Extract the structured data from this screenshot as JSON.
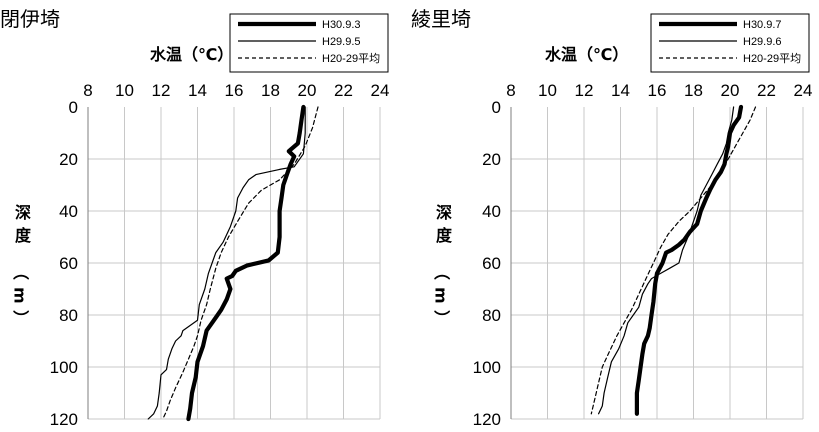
{
  "chart_data": [
    {
      "type": "line",
      "title": "閉伊埼",
      "xlabel": "水温（℃）",
      "ylabel": "深度（m）",
      "xlim": [
        8,
        24
      ],
      "ylim": [
        0,
        120
      ],
      "y_inverted": true,
      "x_axis_position": "top",
      "xticks": [
        8,
        10,
        12,
        14,
        16,
        18,
        20,
        22,
        24
      ],
      "yticks": [
        0,
        20,
        40,
        60,
        80,
        100,
        120
      ],
      "grid": true,
      "legend_position": "top-right",
      "series": [
        {
          "name": "H30.9.3",
          "style": "thick",
          "color": "#000000",
          "points": [
            [
              19.8,
              0
            ],
            [
              19.7,
              5
            ],
            [
              19.6,
              10
            ],
            [
              19.5,
              14
            ],
            [
              19.0,
              17
            ],
            [
              19.3,
              19
            ],
            [
              19.1,
              22
            ],
            [
              18.9,
              26
            ],
            [
              18.8,
              28
            ],
            [
              18.7,
              30
            ],
            [
              18.6,
              35
            ],
            [
              18.5,
              40
            ],
            [
              18.5,
              50
            ],
            [
              18.4,
              56
            ],
            [
              17.9,
              59
            ],
            [
              16.7,
              61
            ],
            [
              16.1,
              63
            ],
            [
              15.9,
              65
            ],
            [
              15.6,
              66
            ],
            [
              15.8,
              70
            ],
            [
              15.6,
              74
            ],
            [
              15.3,
              78
            ],
            [
              15.0,
              81
            ],
            [
              14.8,
              83
            ],
            [
              14.5,
              86
            ],
            [
              14.3,
              92
            ],
            [
              14.0,
              98
            ],
            [
              13.9,
              104
            ],
            [
              13.7,
              110
            ],
            [
              13.6,
              116
            ],
            [
              13.5,
              120
            ]
          ]
        },
        {
          "name": "H29.9.5",
          "style": "thin",
          "color": "#000000",
          "points": [
            [
              19.9,
              0
            ],
            [
              19.9,
              10
            ],
            [
              19.8,
              18
            ],
            [
              19.3,
              23
            ],
            [
              18.5,
              24
            ],
            [
              17.2,
              26
            ],
            [
              16.8,
              28
            ],
            [
              16.5,
              31
            ],
            [
              16.2,
              35
            ],
            [
              16.1,
              40
            ],
            [
              15.8,
              46
            ],
            [
              15.4,
              52
            ],
            [
              15.0,
              56
            ],
            [
              14.8,
              60
            ],
            [
              14.6,
              64
            ],
            [
              14.4,
              70
            ],
            [
              14.1,
              76
            ],
            [
              14.0,
              82
            ],
            [
              13.2,
              86
            ],
            [
              13.1,
              88
            ],
            [
              12.8,
              90
            ],
            [
              12.6,
              93
            ],
            [
              12.4,
              97
            ],
            [
              12.3,
              101
            ],
            [
              12.0,
              103
            ],
            [
              11.9,
              110
            ],
            [
              11.8,
              115
            ],
            [
              11.6,
              118
            ],
            [
              11.3,
              120
            ]
          ]
        },
        {
          "name": "H20-29平均",
          "style": "dashed",
          "color": "#000000",
          "points": [
            [
              20.6,
              0
            ],
            [
              20.3,
              8
            ],
            [
              19.9,
              15
            ],
            [
              19.3,
              22
            ],
            [
              18.5,
              28
            ],
            [
              17.5,
              32
            ],
            [
              16.8,
              37
            ],
            [
              16.2,
              44
            ],
            [
              15.7,
              50
            ],
            [
              15.3,
              56
            ],
            [
              15.0,
              62
            ],
            [
              14.7,
              70
            ],
            [
              14.5,
              76
            ],
            [
              14.2,
              82
            ],
            [
              14.0,
              88
            ],
            [
              13.8,
              92
            ],
            [
              13.5,
              97
            ],
            [
              13.2,
              102
            ],
            [
              12.8,
              108
            ],
            [
              12.5,
              113
            ],
            [
              12.3,
              117
            ],
            [
              12.1,
              120
            ]
          ]
        }
      ]
    },
    {
      "type": "line",
      "title": "綾里埼",
      "xlabel": "水温（℃）",
      "ylabel": "深度（m）",
      "xlim": [
        8,
        24
      ],
      "ylim": [
        0,
        120
      ],
      "y_inverted": true,
      "x_axis_position": "top",
      "xticks": [
        8,
        10,
        12,
        14,
        16,
        18,
        20,
        22,
        24
      ],
      "yticks": [
        0,
        20,
        40,
        60,
        80,
        100,
        120
      ],
      "grid": true,
      "legend_position": "top-right",
      "series": [
        {
          "name": "H30.9.7",
          "style": "thick",
          "color": "#000000",
          "points": [
            [
              20.6,
              0
            ],
            [
              20.5,
              4
            ],
            [
              20.2,
              7
            ],
            [
              20.0,
              10
            ],
            [
              19.9,
              15
            ],
            [
              19.8,
              18
            ],
            [
              19.7,
              22
            ],
            [
              19.5,
              25
            ],
            [
              19.2,
              28
            ],
            [
              18.9,
              32
            ],
            [
              18.7,
              35
            ],
            [
              18.4,
              40
            ],
            [
              18.2,
              45
            ],
            [
              17.8,
              48
            ],
            [
              17.5,
              51
            ],
            [
              17.2,
              53
            ],
            [
              16.8,
              55
            ],
            [
              16.5,
              56
            ],
            [
              16.3,
              60
            ],
            [
              16.0,
              64
            ],
            [
              15.9,
              68
            ],
            [
              15.8,
              75
            ],
            [
              15.7,
              80
            ],
            [
              15.6,
              85
            ],
            [
              15.5,
              88
            ],
            [
              15.3,
              91
            ],
            [
              15.2,
              95
            ],
            [
              15.1,
              100
            ],
            [
              15.0,
              105
            ],
            [
              14.9,
              110
            ],
            [
              14.9,
              118
            ]
          ]
        },
        {
          "name": "H29.9.6",
          "style": "thin",
          "color": "#000000",
          "points": [
            [
              20.2,
              0
            ],
            [
              20.1,
              5
            ],
            [
              19.9,
              10
            ],
            [
              19.8,
              14
            ],
            [
              19.6,
              18
            ],
            [
              19.3,
              22
            ],
            [
              19.0,
              26
            ],
            [
              18.7,
              30
            ],
            [
              18.4,
              34
            ],
            [
              18.2,
              40
            ],
            [
              17.9,
              46
            ],
            [
              17.7,
              50
            ],
            [
              17.4,
              55
            ],
            [
              17.2,
              60
            ],
            [
              16.7,
              62
            ],
            [
              16.2,
              64
            ],
            [
              15.7,
              66
            ],
            [
              15.5,
              68
            ],
            [
              15.2,
              72
            ],
            [
              15.0,
              77
            ],
            [
              14.7,
              80
            ],
            [
              14.4,
              83
            ],
            [
              14.2,
              88
            ],
            [
              13.9,
              93
            ],
            [
              13.5,
              98
            ],
            [
              13.3,
              104
            ],
            [
              13.1,
              110
            ],
            [
              13.0,
              115
            ],
            [
              12.8,
              118
            ]
          ]
        },
        {
          "name": "H20-29平均",
          "style": "dashed",
          "color": "#000000",
          "points": [
            [
              21.4,
              0
            ],
            [
              21.1,
              5
            ],
            [
              20.7,
              10
            ],
            [
              20.3,
              15
            ],
            [
              19.9,
              20
            ],
            [
              19.5,
              25
            ],
            [
              19.0,
              30
            ],
            [
              18.4,
              35
            ],
            [
              17.8,
              40
            ],
            [
              17.2,
              44
            ],
            [
              16.6,
              49
            ],
            [
              16.2,
              54
            ],
            [
              15.8,
              60
            ],
            [
              15.4,
              66
            ],
            [
              15.0,
              72
            ],
            [
              14.6,
              78
            ],
            [
              14.2,
              83
            ],
            [
              13.8,
              88
            ],
            [
              13.4,
              94
            ],
            [
              13.0,
              100
            ],
            [
              12.8,
              106
            ],
            [
              12.6,
              112
            ],
            [
              12.4,
              118
            ]
          ]
        }
      ]
    }
  ]
}
